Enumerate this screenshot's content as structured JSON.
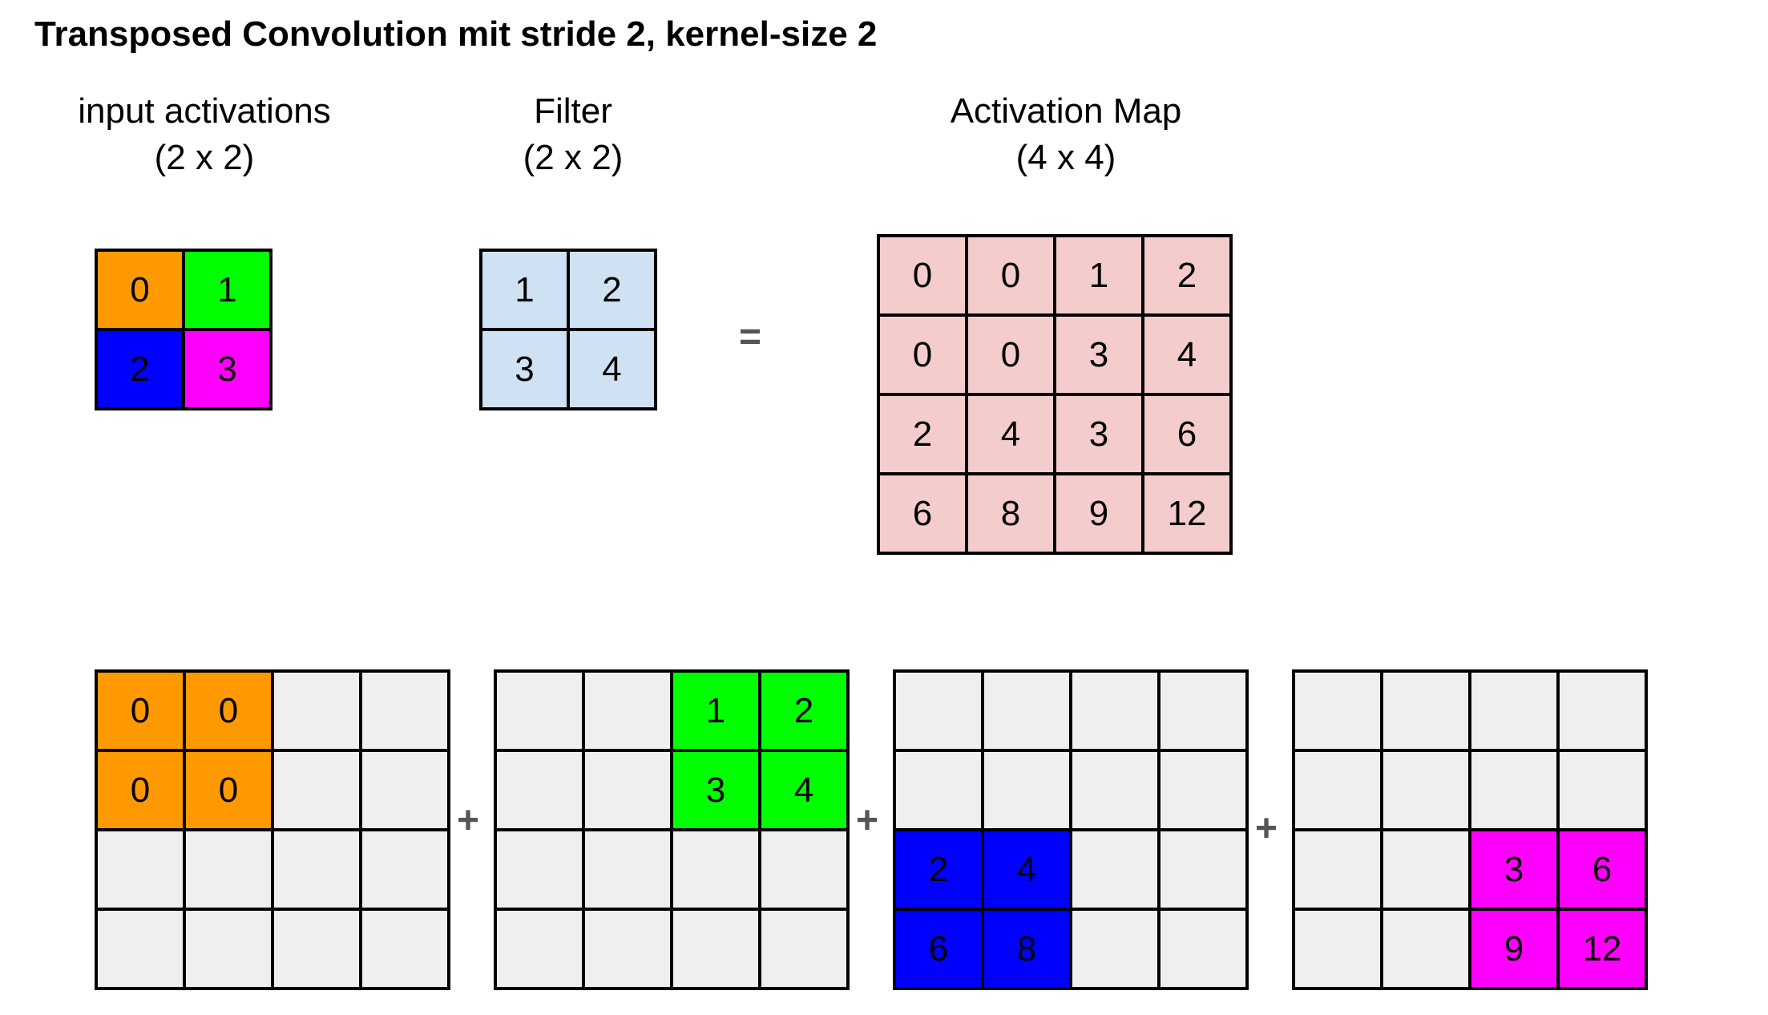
{
  "title": "Transposed Convolution mit stride 2, kernel-size 2",
  "labels": {
    "input": {
      "line1": "input activations",
      "line2": "(2 x 2)"
    },
    "filter": {
      "line1": "Filter",
      "line2": "(2 x 2)"
    },
    "output": {
      "line1": "Activation Map",
      "line2": "(4 x 4)"
    }
  },
  "equals": "=",
  "plus": "+",
  "colors": {
    "orange": "#ff9900",
    "green": "#00ff00",
    "blue": "#0000ff",
    "magenta": "#ff00ff",
    "filter_bg": "#cfe2f3",
    "output_bg": "#f4cccc",
    "empty_bg": "#efefef"
  },
  "input_grid": [
    [
      {
        "v": "0",
        "c": "orange"
      },
      {
        "v": "1",
        "c": "green"
      }
    ],
    [
      {
        "v": "2",
        "c": "blue"
      },
      {
        "v": "3",
        "c": "magenta"
      }
    ]
  ],
  "filter_grid": [
    [
      "1",
      "2"
    ],
    [
      "3",
      "4"
    ]
  ],
  "output_grid": [
    [
      "0",
      "0",
      "1",
      "2"
    ],
    [
      "0",
      "0",
      "3",
      "4"
    ],
    [
      "2",
      "4",
      "3",
      "6"
    ],
    [
      "6",
      "8",
      "9",
      "12"
    ]
  ],
  "partials": [
    {
      "color": "orange",
      "cells": [
        [
          "0",
          "0",
          "",
          ""
        ],
        [
          "0",
          "0",
          "",
          ""
        ],
        [
          "",
          "",
          "",
          ""
        ],
        [
          "",
          "",
          "",
          ""
        ]
      ]
    },
    {
      "color": "green",
      "cells": [
        [
          "",
          "",
          "1",
          "2"
        ],
        [
          "",
          "",
          "3",
          "4"
        ],
        [
          "",
          "",
          "",
          ""
        ],
        [
          "",
          "",
          "",
          ""
        ]
      ]
    },
    {
      "color": "blue",
      "cells": [
        [
          "",
          "",
          "",
          ""
        ],
        [
          "",
          "",
          "",
          ""
        ],
        [
          "2",
          "4",
          "",
          ""
        ],
        [
          "6",
          "8",
          "",
          ""
        ]
      ]
    },
    {
      "color": "magenta",
      "cells": [
        [
          "",
          "",
          "",
          ""
        ],
        [
          "",
          "",
          "",
          ""
        ],
        [
          "",
          "",
          "3",
          "6"
        ],
        [
          "",
          "",
          "9",
          "12"
        ]
      ]
    }
  ]
}
